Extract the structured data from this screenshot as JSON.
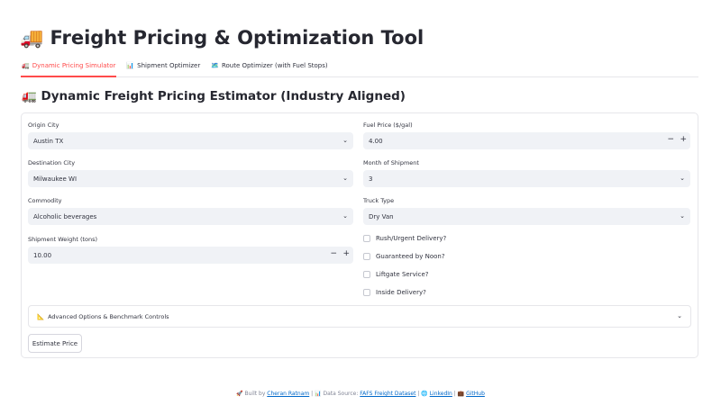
{
  "header": {
    "icon": "🚚",
    "title": "Freight Pricing & Optimization Tool"
  },
  "tabs": [
    {
      "icon": "🚛",
      "label": "Dynamic Pricing Simulator",
      "active": true
    },
    {
      "icon": "📊",
      "label": "Shipment Optimizer"
    },
    {
      "icon": "🗺️",
      "label": "Route Optimizer (with Fuel Stops)"
    }
  ],
  "section": {
    "icon": "🚛",
    "title": "Dynamic Freight Pricing Estimator (Industry Aligned)"
  },
  "form": {
    "origin": {
      "label": "Origin City",
      "value": "Austin TX"
    },
    "destination": {
      "label": "Destination City",
      "value": "Milwaukee WI"
    },
    "commodity": {
      "label": "Commodity",
      "value": "Alcoholic beverages"
    },
    "weight": {
      "label": "Shipment Weight (tons)",
      "value": "10.00"
    },
    "fuel": {
      "label": "Fuel Price ($/gal)",
      "value": "4.00"
    },
    "month": {
      "label": "Month of Shipment",
      "value": "3"
    },
    "truck": {
      "label": "Truck Type",
      "value": "Dry Van"
    },
    "checkboxes": [
      "Rush/Urgent Delivery?",
      "Guaranteed by Noon?",
      "Liftgate Service?",
      "Inside Delivery?"
    ],
    "advanced": {
      "icon": "📐",
      "label": "Advanced Options & Benchmark Controls"
    },
    "submit": "Estimate Price"
  },
  "footer": {
    "built_by": "Built by",
    "author": "Cheran Ratnam",
    "sep": "|",
    "data_source": "Data Source:",
    "dataset": "FAFS Freight Dataset",
    "linkedin": "LinkedIn",
    "github": "GitHub"
  },
  "colors": {
    "accent": "#ff4b4b",
    "input_bg": "#f0f2f6",
    "link": "#0068c9"
  }
}
